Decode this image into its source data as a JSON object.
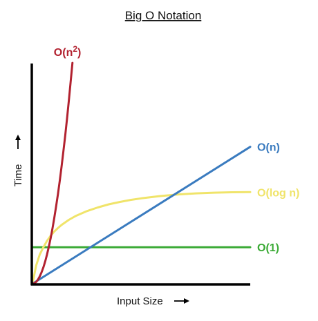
{
  "chart_data": {
    "type": "line",
    "title": "Big O Notation",
    "xlabel": "Input Size",
    "ylabel": "Time",
    "grid": false,
    "legend": "labels at line ends",
    "series": [
      {
        "name": "O(n²)",
        "label_base": "O(n",
        "label_sup": "2",
        "label_close": ")",
        "color": "#b22230",
        "x": [
          0,
          0.5,
          1,
          1.5,
          2,
          2.5,
          3,
          3.5,
          4,
          4.5,
          5,
          5.5,
          6,
          6.5,
          7,
          7.5,
          8,
          8.5,
          9,
          9.5,
          10,
          10.5,
          11
        ],
        "y": [
          0,
          0.25,
          1,
          2.25,
          4,
          6.25,
          9,
          12.25,
          16,
          20.25,
          25,
          30.25,
          36,
          42.25,
          49,
          56.25,
          64,
          72.25,
          81,
          90.25,
          100,
          110.25,
          121
        ]
      },
      {
        "name": "O(n)",
        "color": "#3a7bbf",
        "x": [
          0,
          60
        ],
        "y": [
          0,
          75
        ]
      },
      {
        "name": "O(log n)",
        "color": "#f0e46a",
        "x": [
          0,
          1,
          2,
          3,
          4,
          5,
          6,
          7,
          8,
          10,
          12,
          15,
          18,
          21,
          24,
          27,
          30,
          35,
          40,
          45,
          50,
          55,
          60
        ],
        "y": [
          0,
          10,
          16,
          20,
          23.5,
          26.3,
          28.6,
          30.5,
          32.2,
          35,
          37.2,
          39.8,
          41.8,
          43.5,
          44.8,
          45.9,
          46.8,
          48,
          48.9,
          49.5,
          49.9,
          50.1,
          50.2
        ]
      },
      {
        "name": "O(1)",
        "color": "#3aaa35",
        "x": [
          0,
          60
        ],
        "y": [
          20,
          20
        ]
      }
    ],
    "xlim": [
      0,
      60
    ],
    "ylim": [
      0,
      132
    ]
  }
}
